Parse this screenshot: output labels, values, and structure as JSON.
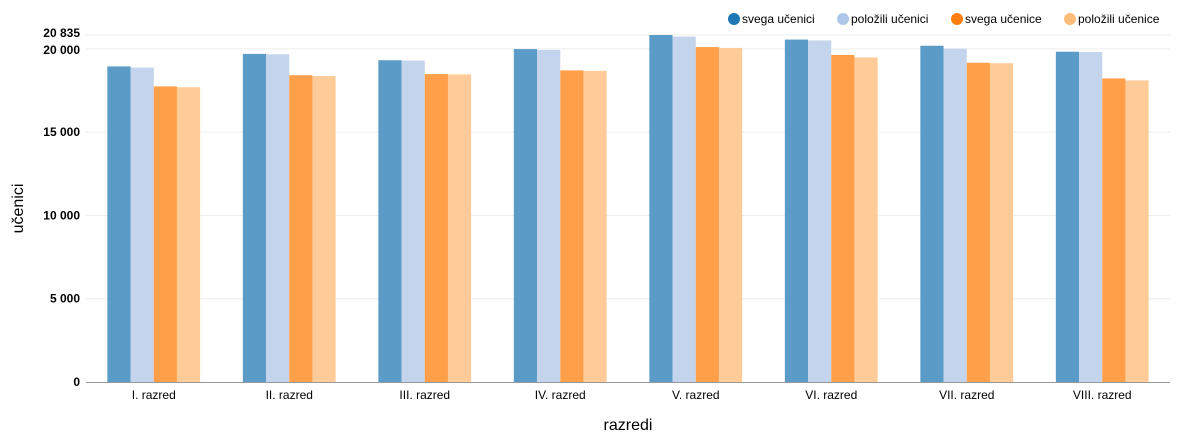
{
  "chart_data": {
    "type": "bar",
    "title": "",
    "xlabel": "razredi",
    "ylabel": "učenici",
    "ylim": [
      0,
      20835
    ],
    "y_ticks": [
      {
        "value": 0,
        "label": "0"
      },
      {
        "value": 5000,
        "label": "5 000"
      },
      {
        "value": 10000,
        "label": "10 000"
      },
      {
        "value": 15000,
        "label": "15 000"
      },
      {
        "value": 20000,
        "label": "20 000"
      },
      {
        "value": 20835,
        "label": "20 835"
      }
    ],
    "grid": true,
    "legend_position": "top-right",
    "categories": [
      "I. razred",
      "II. razred",
      "III. razred",
      "IV. razred",
      "V. razred",
      "VI. razred",
      "VII. razred",
      "VIII. razred"
    ],
    "series": [
      {
        "name": "svega učenici",
        "color": "#5b9bc8",
        "values": [
          18950,
          19700,
          19320,
          19990,
          20835,
          20560,
          20190,
          19830
        ]
      },
      {
        "name": "položili učenici",
        "color": "#c3d4ec",
        "values": [
          18880,
          19680,
          19300,
          19940,
          20740,
          20510,
          20020,
          19810
        ]
      },
      {
        "name": "svega učenice",
        "color": "#ff9f4a",
        "values": [
          17750,
          18420,
          18490,
          18710,
          20110,
          19640,
          19170,
          18230
        ]
      },
      {
        "name": "položili učenice",
        "color": "#ffcc99",
        "values": [
          17700,
          18370,
          18470,
          18680,
          20060,
          19490,
          19140,
          18110
        ]
      }
    ],
    "legend_dot_colors": [
      "#1f77b4",
      "#aec7e8",
      "#ff7f0e",
      "#ffbb78"
    ]
  }
}
